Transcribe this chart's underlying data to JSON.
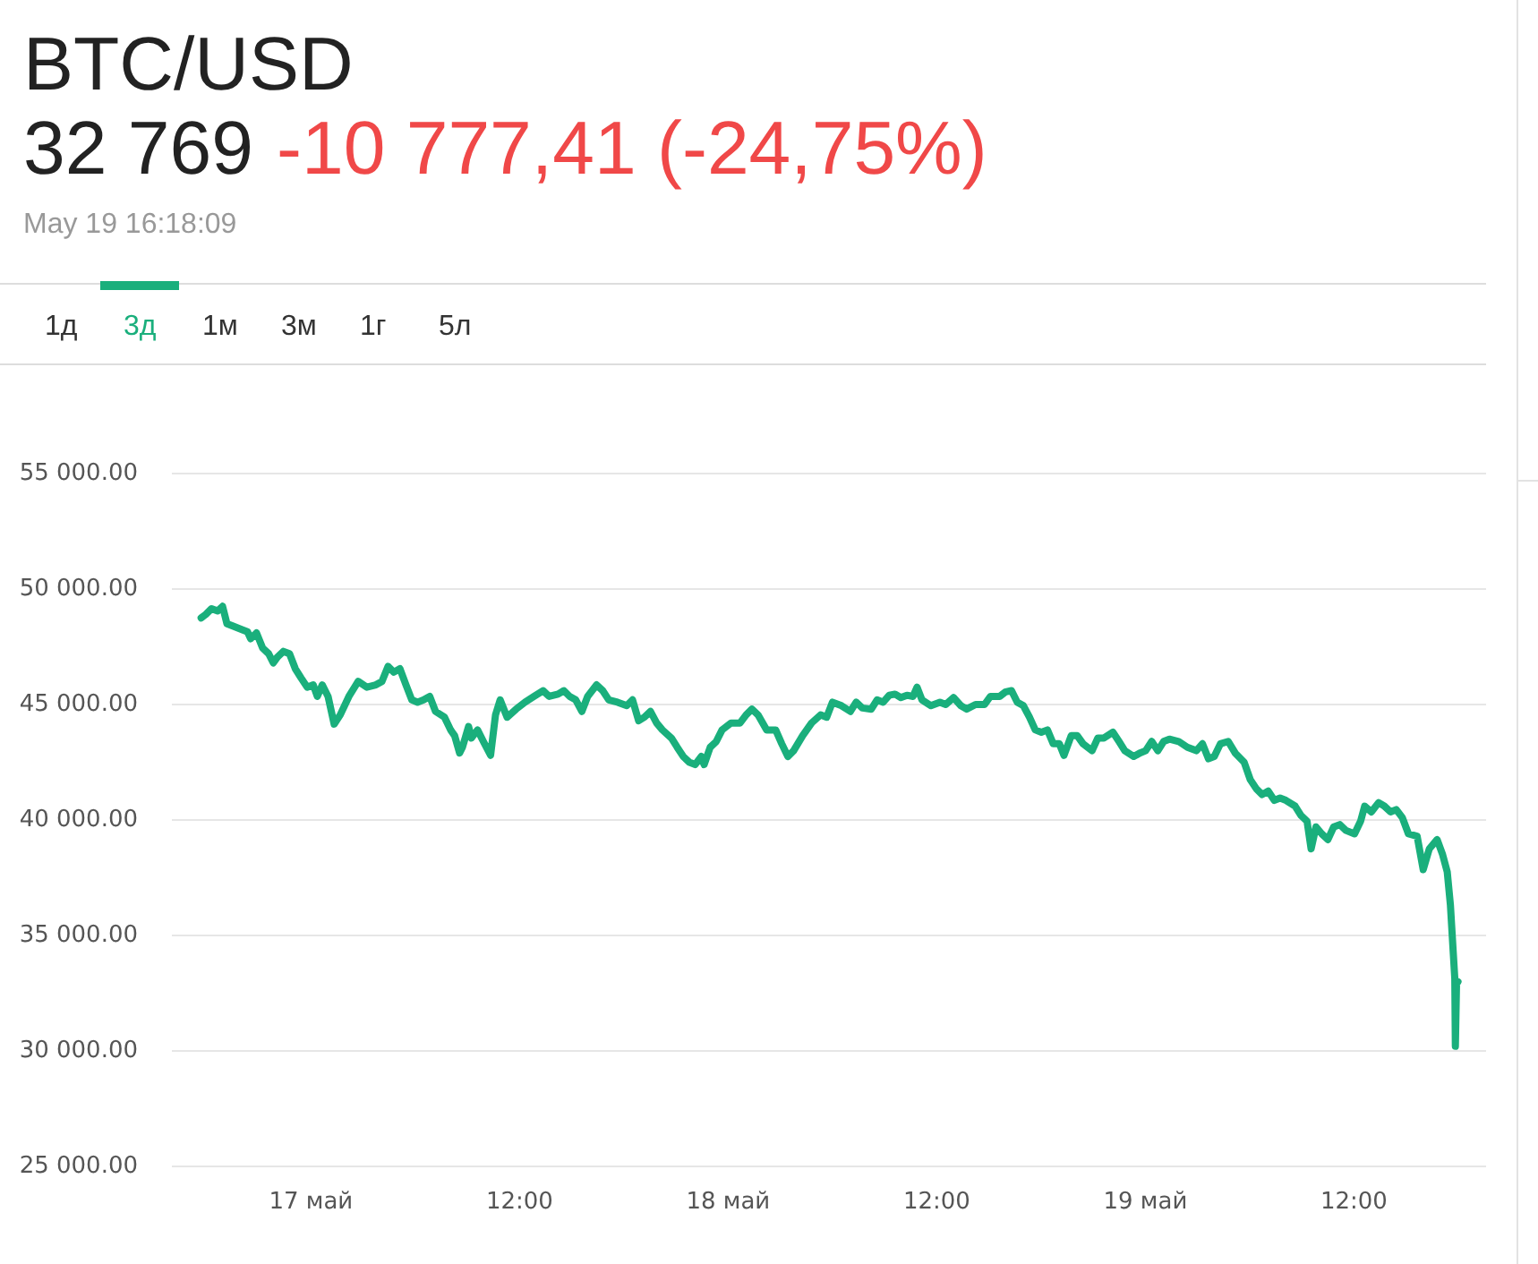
{
  "chart_data": {
    "type": "line",
    "title": "BTC/USD",
    "subtitle": "32 769",
    "annotations": [
      "-10 777,41 (-24,75%)",
      "May 19 16:18:09",
      "1д",
      "3д",
      "1м",
      "3м",
      "1г",
      "5л"
    ],
    "x": [
      "--05-16T17:41",
      "--05-16T17:57",
      "--05-16T18:17",
      "--05-16T18:38",
      "--05-16T18:55",
      "--05-16T19:10",
      "--05-16T19:30",
      "--05-16T20:01",
      "--05-16T20:21",
      "--05-16T20:32",
      "--05-16T20:52",
      "--05-16T21:13",
      "--05-16T21:34",
      "--05-16T21:50",
      "--05-16T22:04",
      "--05-16T22:25",
      "--05-16T22:46",
      "--05-16T23:06",
      "--05-16T23:26",
      "--05-16T23:47",
      "--05-17T00:08",
      "--05-17T00:22",
      "--05-17T00:39",
      "--05-17T00:59",
      "--05-17T01:20",
      "--05-17T01:41",
      "--05-17T02:11",
      "--05-17T02:43",
      "--05-17T03:13",
      "--05-17T03:44",
      "--05-17T04:05",
      "--05-17T04:26",
      "--05-17T04:46",
      "--05-17T05:07",
      "--05-17T05:28",
      "--05-17T05:48",
      "--05-17T06:08",
      "--05-17T06:29",
      "--05-17T06:50",
      "--05-17T07:10",
      "--05-17T07:41",
      "--05-17T08:02",
      "--05-17T08:16",
      "--05-17T08:33",
      "--05-17T08:43",
      "--05-17T09:04",
      "--05-17T09:14",
      "--05-17T09:35",
      "--05-17T09:55",
      "--05-17T10:20",
      "--05-17T10:37",
      "--05-17T10:53",
      "--05-17T11:17",
      "--05-17T11:48",
      "--05-17T12:19",
      "--05-17T12:50",
      "--05-17T13:21",
      "--05-17T13:42",
      "--05-17T14:13",
      "--05-17T14:33",
      "--05-17T14:53",
      "--05-17T15:14",
      "--05-17T15:35",
      "--05-17T15:55",
      "--05-17T16:26",
      "--05-17T16:47",
      "--05-17T17:08",
      "--05-17T17:38",
      "--05-17T18:10",
      "--05-17T18:30",
      "--05-17T18:51",
      "--05-17T19:11",
      "--05-17T19:32",
      "--05-17T19:53",
      "--05-17T20:13",
      "--05-17T20:44",
      "--05-17T21:04",
      "--05-17T21:25",
      "--05-17T21:46",
      "--05-17T22:06",
      "--05-17T22:27",
      "--05-17T22:37",
      "--05-17T22:58",
      "--05-17T23:19",
      "--05-17T23:39",
      "--05-18T00:10",
      "--05-18T00:41",
      "--05-18T01:02",
      "--05-18T01:22",
      "--05-18T01:43",
      "--05-18T02:13",
      "--05-18T02:44",
      "--05-18T03:05",
      "--05-18T03:26",
      "--05-18T03:46",
      "--05-18T04:17",
      "--05-18T04:48",
      "--05-18T05:19",
      "--05-18T05:40",
      "--05-18T06:00",
      "--05-18T06:31",
      "--05-18T07:02",
      "--05-18T07:22",
      "--05-18T07:43",
      "--05-18T08:14",
      "--05-18T08:34",
      "--05-18T08:55",
      "--05-18T09:16",
      "--05-18T09:36",
      "--05-18T09:56",
      "--05-18T10:17",
      "--05-18T10:38",
      "--05-18T10:52",
      "--05-18T11:09",
      "--05-18T11:40",
      "--05-18T12:11",
      "--05-18T12:31",
      "--05-18T12:58",
      "--05-18T13:23",
      "--05-18T13:43",
      "--05-18T14:14",
      "--05-18T14:45",
      "--05-18T15:05",
      "--05-18T15:37",
      "--05-18T15:58",
      "--05-18T16:18",
      "--05-18T16:38",
      "--05-18T16:59",
      "--05-18T17:20",
      "--05-18T17:40",
      "--05-18T18:01",
      "--05-18T18:22",
      "--05-18T18:42",
      "--05-18T19:03",
      "--05-18T19:19",
      "--05-18T19:44",
      "--05-18T20:05",
      "--05-18T20:25",
      "--05-18T20:56",
      "--05-18T21:16",
      "--05-18T21:37",
      "--05-18T22:08",
      "--05-18T22:29",
      "--05-18T22:49",
      "--05-18T23:20",
      "--05-18T23:41",
      "--05-19T00:01",
      "--05-19T00:22",
      "--05-19T00:43",
      "--05-19T01:03",
      "--05-19T01:23",
      "--05-19T01:55",
      "--05-19T02:25",
      "--05-19T02:56",
      "--05-19T03:17",
      "--05-19T03:38",
      "--05-19T03:58",
      "--05-19T04:19",
      "--05-19T04:46",
      "--05-19T05:10",
      "--05-19T05:41",
      "--05-19T06:02",
      "--05-19T06:23",
      "--05-19T06:43",
      "--05-19T07:04",
      "--05-19T07:25",
      "--05-19T07:45",
      "--05-19T08:05",
      "--05-19T08:37",
      "--05-19T08:57",
      "--05-19T09:18",
      "--05-19T09:32",
      "--05-19T09:49",
      "--05-19T10:09",
      "--05-19T10:30",
      "--05-19T10:50",
      "--05-19T11:11",
      "--05-19T11:32",
      "--05-19T12:02",
      "--05-19T12:23",
      "--05-19T12:37",
      "--05-19T13:00",
      "--05-19T13:25",
      "--05-19T13:45",
      "--05-19T14:06",
      "--05-19T14:26",
      "--05-19T14:47",
      "--05-19T15:08",
      "--05-19T15:38",
      "--05-19T15:59",
      "--05-19T16:20",
      "--05-19T16:47",
      "--05-19T17:06",
      "--05-19T17:22",
      "--05-19T17:33",
      "--05-19T17:43",
      "--05-19T17:48",
      "--05-19T17:50",
      "--05-19T17:54",
      "--05-19T17:59"
    ],
    "series": [
      {
        "color": "#1aaf7c",
        "values": [
          48750,
          48900,
          49150,
          49050,
          49250,
          48500,
          48400,
          48250,
          48150,
          47850,
          48100,
          47450,
          47200,
          46800,
          47050,
          47300,
          47200,
          46550,
          46150,
          45750,
          45850,
          45350,
          45850,
          45350,
          44150,
          44550,
          45350,
          46000,
          45750,
          45850,
          46000,
          46650,
          46400,
          46550,
          45850,
          45200,
          45100,
          45200,
          45350,
          44700,
          44450,
          43900,
          43650,
          42900,
          43150,
          44050,
          43550,
          43900,
          43400,
          42800,
          44550,
          45200,
          44450,
          44800,
          45100,
          45350,
          45600,
          45350,
          45450,
          45600,
          45350,
          45200,
          44700,
          45350,
          45850,
          45600,
          45200,
          45100,
          44950,
          45200,
          44300,
          44450,
          44700,
          44200,
          43900,
          43550,
          43150,
          42750,
          42500,
          42400,
          42750,
          42400,
          43150,
          43400,
          43900,
          44200,
          44200,
          44550,
          44800,
          44550,
          43900,
          43900,
          43300,
          42750,
          43000,
          43650,
          44200,
          44550,
          44450,
          45100,
          44950,
          44700,
          45100,
          44850,
          44800,
          45200,
          45100,
          45400,
          45450,
          45300,
          45400,
          45350,
          45750,
          45200,
          44950,
          45100,
          45000,
          45300,
          44950,
          44800,
          45000,
          45000,
          45350,
          45350,
          45550,
          45600,
          45100,
          44950,
          44450,
          43900,
          43800,
          43900,
          43300,
          43300,
          42800,
          43650,
          43650,
          43300,
          43000,
          43550,
          43550,
          43800,
          43400,
          43000,
          42750,
          42900,
          43000,
          43400,
          43000,
          43400,
          43500,
          43400,
          43150,
          43000,
          43300,
          42650,
          42750,
          43300,
          43400,
          42900,
          42500,
          41750,
          41350,
          41100,
          41250,
          40850,
          40950,
          40850,
          40600,
          40200,
          39950,
          38750,
          39700,
          39400,
          39150,
          39700,
          39800,
          39550,
          39400,
          39950,
          40600,
          40350,
          40750,
          40600,
          40350,
          40450,
          40100,
          39400,
          39300,
          37850,
          38750,
          39150,
          38500,
          37750,
          36300,
          34200,
          33150,
          30200,
          32900,
          33000
        ]
      }
    ],
    "xlim": [
      "--05-16T16:00",
      "--05-19T19:36"
    ],
    "xticks": [
      {
        "value": "--05-17T00:00",
        "label": "17 май"
      },
      {
        "value": "--05-17T12:00",
        "label": "12:00"
      },
      {
        "value": "--05-18T00:00",
        "label": "18 май"
      },
      {
        "value": "--05-18T12:00",
        "label": "12:00"
      },
      {
        "value": "--05-19T00:00",
        "label": "19 май"
      },
      {
        "value": "--05-19T12:00",
        "label": "12:00"
      }
    ],
    "ylim": [
      25000,
      55000
    ],
    "yticks": [
      {
        "value": 25000,
        "label": "25 000.00"
      },
      {
        "value": 30000,
        "label": "30 000.00"
      },
      {
        "value": 35000,
        "label": "35 000.00"
      },
      {
        "value": 40000,
        "label": "40 000.00"
      },
      {
        "value": 45000,
        "label": "45 000.00"
      },
      {
        "value": 50000,
        "label": "50 000.00"
      },
      {
        "value": 55000,
        "label": "55 000.00"
      }
    ],
    "grid": "y",
    "line_style": "solid"
  }
}
